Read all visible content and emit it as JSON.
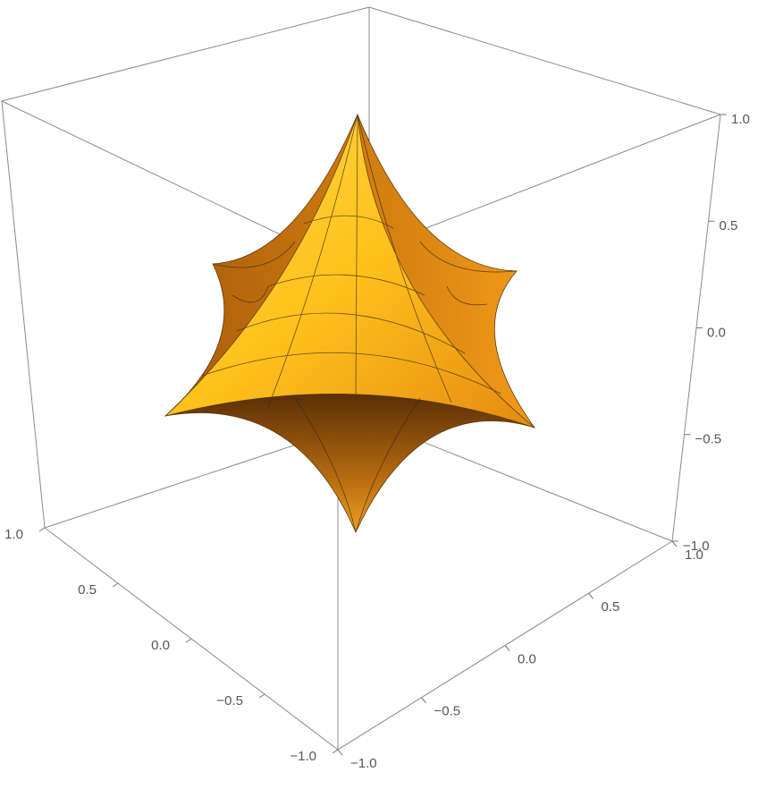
{
  "chart_data": {
    "type": "surface3d",
    "xlim": [
      -1,
      1
    ],
    "ylim": [
      -1,
      1
    ],
    "zlim": [
      -1,
      1
    ],
    "xticks": [
      {
        "value": -1,
        "label": "−1.0"
      },
      {
        "value": -0.5,
        "label": "−0.5"
      },
      {
        "value": 0,
        "label": "0.0"
      },
      {
        "value": 0.5,
        "label": "0.5"
      },
      {
        "value": 1,
        "label": "1.0"
      }
    ],
    "yticks": [
      {
        "value": -1,
        "label": "−1.0"
      },
      {
        "value": -0.5,
        "label": "−0.5"
      },
      {
        "value": 0,
        "label": "0.0"
      },
      {
        "value": 0.5,
        "label": "0.5"
      },
      {
        "value": 1,
        "label": "1.0"
      }
    ],
    "zticks": [
      {
        "value": -1,
        "label": "−1.0"
      },
      {
        "value": -0.5,
        "label": "−0.5"
      },
      {
        "value": 0,
        "label": "0.0"
      },
      {
        "value": 0.5,
        "label": "0.5"
      },
      {
        "value": 1,
        "label": "1.0"
      }
    ],
    "color": "#f5a623"
  }
}
